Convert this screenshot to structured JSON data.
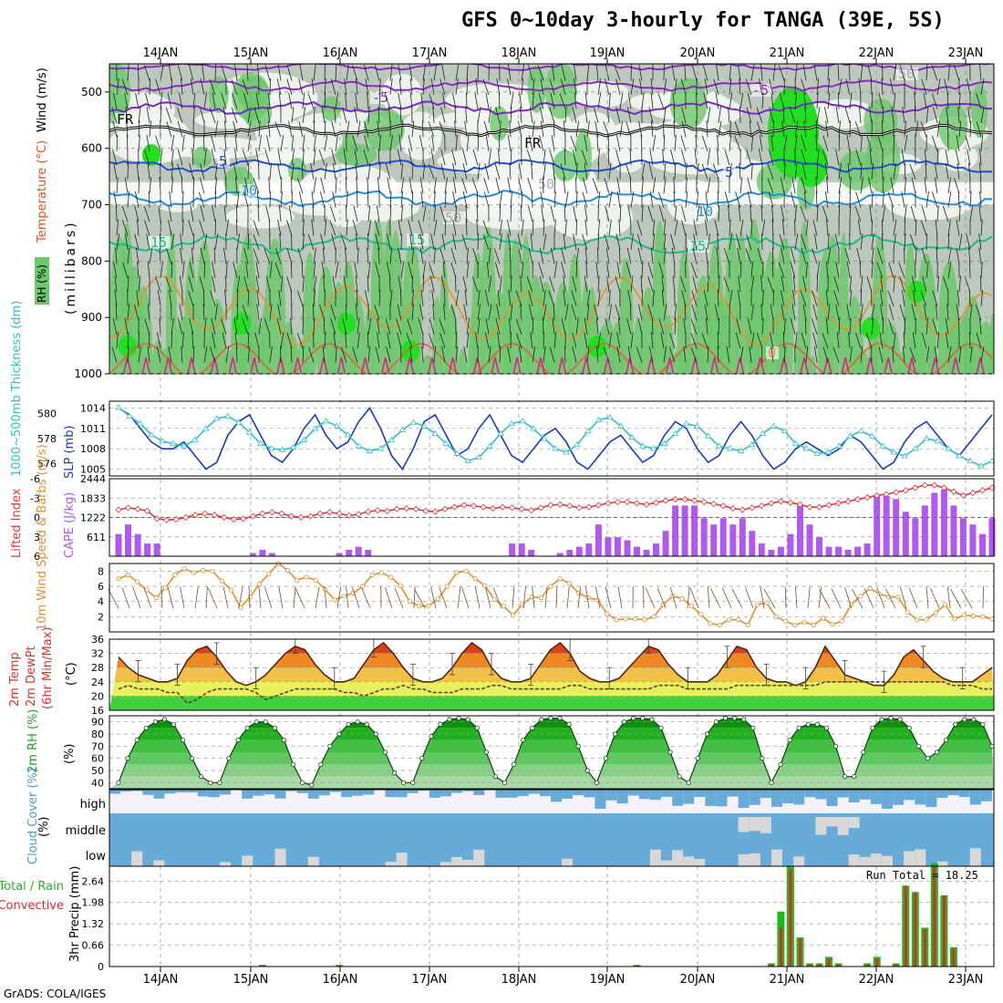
{
  "title": "GFS 0~10day 3-hourly for TANGA (39E, 5S)",
  "credit": "GrADS: COLA/IGES",
  "dates": [
    "14JAN",
    "15JAN",
    "16JAN",
    "17JAN",
    "18JAN",
    "19JAN",
    "20JAN",
    "21JAN",
    "22JAN",
    "23JAN"
  ],
  "colors": {
    "rh_light": "#e0ece0",
    "rh_gray": "#bcc8bc",
    "rh_mid": "#6cc86c",
    "rh_bright": "#20e020",
    "thickness": "#30c0c8",
    "slp": "#1838c8",
    "lifted": "#e03838",
    "cape": "#b058f0",
    "wind10": "#e09030",
    "temp": "#502818",
    "precip_total": "#20b820",
    "precip_conv": "#e02828",
    "cloud": "#68aad8",
    "cloud_gap": "#d8d8d8"
  },
  "chart_data": [
    {
      "type": "heatmap",
      "name": "upper",
      "ylabel_parts": [
        "RH (%)",
        "Temperature (°C)",
        "Wind (m/s)",
        "(millibars)"
      ],
      "yticks": [
        500,
        600,
        700,
        800,
        900,
        1000
      ],
      "ylim": [
        450,
        1000
      ],
      "contour_labels": [
        "-5",
        "-5",
        "FR",
        "FR",
        "5",
        "5",
        "10",
        "10",
        "15",
        "15",
        "15",
        "50",
        "50",
        "50",
        "0"
      ]
    },
    {
      "type": "line",
      "name": "thickness-slp",
      "ylabel_left": "1000~500mb Thickness (dm)",
      "ylabel_right": "SLP (mb)",
      "yticks_left": [
        576,
        578,
        580
      ],
      "yticks_right": [
        1005,
        1008,
        1011,
        1014
      ],
      "series": [
        {
          "name": "SLP",
          "values": [
            1014,
            1013,
            1011,
            1009,
            1008,
            1008,
            1009,
            1007,
            1005,
            1006,
            1010,
            1012,
            1013,
            1010,
            1007,
            1006,
            1008,
            1011,
            1013,
            1010,
            1008,
            1009,
            1012,
            1014,
            1011,
            1007,
            1005,
            1008,
            1012,
            1013,
            1010,
            1007,
            1008,
            1011,
            1013,
            1010,
            1007,
            1006,
            1008,
            1010,
            1011,
            1009,
            1006,
            1005,
            1007,
            1009,
            1010,
            1008,
            1006,
            1007,
            1010,
            1012,
            1011,
            1008,
            1006,
            1007,
            1010,
            1012,
            1010,
            1007,
            1005,
            1006,
            1008,
            1009,
            1008,
            1007,
            1008,
            1010,
            1009,
            1007,
            1005,
            1006,
            1009,
            1011,
            1012,
            1010,
            1008,
            1007,
            1009,
            1011,
            1013
          ]
        },
        {
          "name": "Thickness",
          "values": [
            580.5,
            579.8,
            579.2,
            578.3,
            577.8,
            577.6,
            577.4,
            577.9,
            578.8,
            579.6,
            579.8,
            579.3,
            578.5,
            577.6,
            577.2,
            577.1,
            577.3,
            577.9,
            578.8,
            579.4,
            579.0,
            578.3,
            577.4,
            577.0,
            577.2,
            577.9,
            578.7,
            579.3,
            579.0,
            578.4,
            577.6,
            576.8,
            576.2,
            576.5,
            577.4,
            578.4,
            579.2,
            579.4,
            578.8,
            578.0,
            577.2,
            576.9,
            577.5,
            578.6,
            579.5,
            579.7,
            579.0,
            578.1,
            577.4,
            577.2,
            577.6,
            578.4,
            579.2,
            579.0,
            578.2,
            577.4,
            577.2,
            577.0,
            577.5,
            578.4,
            579.0,
            578.6,
            577.6,
            577.2,
            576.8,
            576.9,
            577.4,
            578.2,
            578.6,
            578.2,
            577.4,
            576.9,
            576.6,
            577.2,
            578.0,
            577.8,
            577.2,
            576.6,
            576.2,
            575.8,
            576.2
          ]
        }
      ]
    },
    {
      "type": "bar",
      "name": "cape-lifted",
      "ylabel_left": "Lifted Index",
      "ylabel_right": "CAPE (J/kg)",
      "yticks_left": [
        6,
        3,
        0,
        -3,
        -6
      ],
      "yticks_right": [
        611,
        1222,
        1833,
        2444
      ],
      "series": [
        {
          "name": "CAPE",
          "values": [
            700,
            1000,
            700,
            400,
            400,
            0,
            0,
            0,
            0,
            0,
            0,
            0,
            0,
            0,
            100,
            200,
            100,
            0,
            0,
            0,
            0,
            0,
            0,
            100,
            200,
            300,
            200,
            0,
            0,
            0,
            0,
            0,
            0,
            0,
            0,
            0,
            0,
            0,
            0,
            0,
            0,
            400,
            400,
            200,
            0,
            0,
            100,
            200,
            300,
            400,
            1000,
            600,
            600,
            500,
            300,
            200,
            400,
            800,
            1600,
            1600,
            1600,
            1200,
            1000,
            1200,
            1000,
            1200,
            800,
            400,
            200,
            300,
            700,
            1600,
            1000,
            600,
            300,
            300,
            200,
            300,
            400,
            1900,
            1900,
            1800,
            1400,
            1200,
            1600,
            2000,
            2100,
            1600,
            1200,
            1000,
            700,
            1200
          ]
        },
        {
          "name": "Lifted Index",
          "values": [
            -1.2,
            -1.5,
            -1.3,
            -1.0,
            0.2,
            0.4,
            0.3,
            0.0,
            -0.4,
            -0.6,
            -0.4,
            0.0,
            0.3,
            0.2,
            -0.2,
            -0.6,
            -0.8,
            -0.6,
            -0.2,
            0.0,
            -0.2,
            -0.6,
            -0.8,
            -0.6,
            -0.3,
            -0.5,
            -0.9,
            -1.1,
            -1.0,
            -1.3,
            -1.4,
            -1.3,
            -1.0,
            -0.9,
            -1.3,
            -1.6,
            -1.9,
            -1.8,
            -1.6,
            -1.4,
            -1.6,
            -1.5,
            -1.3,
            -1.1,
            -1.5,
            -1.9,
            -2.0,
            -1.8,
            -1.5,
            -1.6,
            -1.9,
            -2.2,
            -2.4,
            -2.4,
            -2.2,
            -2.0,
            -2.3,
            -2.6,
            -2.8,
            -2.8,
            -2.6,
            -2.4,
            -2.1,
            -1.8,
            -1.4,
            -1.2,
            -1.5,
            -1.8,
            -2.2,
            -2.5,
            -2.3,
            -2.0,
            -1.6,
            -1.6,
            -1.9,
            -2.2,
            -2.5,
            -2.8,
            -3.1,
            -3.4,
            -3.6,
            -3.9,
            -4.2,
            -4.6,
            -5.0,
            -5.0,
            -4.6,
            -4.0,
            -3.4,
            -3.8,
            -4.2,
            -4.6
          ]
        }
      ]
    },
    {
      "type": "line",
      "name": "wind10m",
      "ylabel": "10m Wind Speed & Barbs (m/s)",
      "yticks": [
        2,
        4,
        6,
        8
      ],
      "ylim": [
        0,
        9
      ],
      "series": [
        {
          "name": "Speed",
          "values": [
            7.0,
            7.5,
            6.6,
            5.5,
            4.5,
            5.8,
            7.5,
            8.3,
            7.8,
            8.1,
            8.0,
            6.7,
            5.5,
            3.2,
            4.6,
            6.3,
            7.6,
            9.0,
            8.1,
            6.8,
            7.2,
            6.8,
            5.6,
            4.2,
            4.7,
            5.1,
            6.0,
            7.5,
            7.8,
            7.2,
            6.1,
            4.0,
            3.4,
            3.4,
            4.3,
            6.0,
            7.8,
            8.0,
            7.0,
            6.1,
            4.3,
            3.4,
            2.2,
            3.6,
            4.6,
            4.5,
            6.0,
            7.0,
            6.4,
            5.1,
            4.5,
            4.2,
            2.4,
            1.6,
            1.7,
            1.7,
            1.6,
            2.0,
            3.6,
            4.7,
            4.4,
            3.4,
            2.3,
            1.1,
            0.9,
            1.6,
            1.6,
            0.9,
            3.6,
            3.8,
            2.0,
            1.4,
            0.9,
            1.3,
            0.9,
            1.8,
            1.0,
            1.4,
            3.6,
            4.7,
            5.7,
            5.0,
            4.6,
            4.6,
            2.6,
            1.6,
            1.6,
            2.5,
            3.6,
            1.7,
            2.2,
            2.1,
            2.0,
            1.7
          ]
        }
      ]
    },
    {
      "type": "area",
      "name": "temp2m",
      "ylabel": "2m Temp 2m DewPt (6hr Min/Max) (°C)",
      "yticks": [
        16,
        20,
        24,
        28,
        32,
        36
      ],
      "ylim": [
        16,
        36
      ],
      "series": [
        {
          "name": "Temp",
          "values": [
            31,
            28,
            26,
            25,
            24,
            24,
            25,
            30,
            33,
            34,
            31,
            27,
            24,
            23,
            24,
            26,
            29,
            32,
            34,
            33,
            29,
            26,
            24,
            24,
            25,
            29,
            33,
            35,
            32,
            28,
            25,
            24,
            24,
            25,
            28,
            32,
            35,
            33,
            28,
            25,
            24,
            24,
            25,
            29,
            33,
            35,
            32,
            27,
            25,
            24,
            24,
            25,
            28,
            31,
            34,
            33,
            29,
            26,
            24,
            24,
            24,
            26,
            30,
            34,
            33,
            28,
            25,
            24,
            24,
            23,
            24,
            28,
            34,
            30,
            26,
            25,
            24,
            23,
            23,
            26,
            31,
            33,
            30,
            27,
            25,
            24,
            24,
            24,
            26,
            28
          ]
        },
        {
          "name": "DewPt",
          "values": [
            22,
            23,
            22,
            22,
            22,
            21,
            21,
            18,
            19,
            21,
            22,
            22,
            22,
            22,
            21,
            19,
            20,
            21,
            22,
            22,
            22,
            22,
            22,
            21,
            21,
            20,
            21,
            22,
            22,
            23,
            22,
            22,
            21,
            21,
            21,
            22,
            22,
            22,
            23,
            23,
            22,
            22,
            22,
            22,
            22,
            22,
            23,
            23,
            22,
            22,
            22,
            22,
            22,
            22,
            22,
            23,
            23,
            23,
            22,
            22,
            22,
            22,
            22,
            23,
            23,
            23,
            23,
            23,
            23,
            23,
            23,
            23,
            24,
            24,
            24,
            24,
            24,
            24,
            24,
            24,
            24,
            24,
            24,
            24,
            24,
            23,
            23,
            23,
            22,
            22
          ]
        }
      ]
    },
    {
      "type": "area",
      "name": "rh2m",
      "ylabel": "2m RH (%)",
      "yticks": [
        40,
        50,
        60,
        70,
        80,
        90
      ],
      "ylim": [
        35,
        95
      ],
      "series": [
        {
          "name": "RH",
          "values": [
            40,
            60,
            75,
            85,
            90,
            92,
            88,
            75,
            60,
            45,
            40,
            40,
            60,
            75,
            85,
            90,
            90,
            85,
            75,
            55,
            40,
            38,
            55,
            70,
            80,
            88,
            90,
            88,
            80,
            65,
            48,
            40,
            40,
            60,
            78,
            88,
            92,
            93,
            92,
            85,
            65,
            45,
            40,
            55,
            75,
            85,
            92,
            93,
            93,
            88,
            70,
            50,
            40,
            60,
            80,
            90,
            93,
            93,
            92,
            85,
            65,
            45,
            40,
            60,
            80,
            90,
            93,
            93,
            92,
            85,
            60,
            40,
            55,
            75,
            85,
            88,
            88,
            85,
            70,
            45,
            45,
            65,
            85,
            92,
            93,
            92,
            85,
            70,
            60,
            65,
            75,
            88,
            92,
            92,
            88,
            70
          ]
        }
      ]
    },
    {
      "type": "bar",
      "name": "cloud",
      "ylabel": "Cloud Cover (%)",
      "levels": [
        "high",
        "middle",
        "low"
      ]
    },
    {
      "type": "bar",
      "name": "precip",
      "ylabel_parts": [
        "Total / Rain",
        "Convective",
        "3hr Precip (mm)"
      ],
      "yticks": [
        0,
        0.66,
        1.32,
        1.98,
        2.64
      ],
      "ylim": [
        0,
        3.1
      ],
      "run_total": "Run Total = 18.25",
      "series": [
        {
          "name": "Total",
          "values": [
            0,
            0,
            0,
            0,
            0,
            0,
            0,
            0,
            0,
            0,
            0,
            0,
            0,
            0,
            0,
            0.05,
            0,
            0,
            0,
            0,
            0,
            0,
            0,
            0.05,
            0,
            0,
            0,
            0,
            0,
            0,
            0,
            0,
            0,
            0,
            0,
            0,
            0,
            0,
            0,
            0,
            0,
            0,
            0,
            0,
            0,
            0,
            0,
            0,
            0,
            0,
            0,
            0,
            0,
            0,
            0.05,
            0,
            0,
            0,
            0,
            0,
            0,
            0,
            0,
            0,
            0,
            0,
            0,
            0,
            0.1,
            1.7,
            3.1,
            0.9,
            0.1,
            0.1,
            0.3,
            0.1,
            0,
            0,
            0.1,
            0.3,
            0,
            0.1,
            2.5,
            2.3,
            1.2,
            3.2,
            2.2,
            0.6,
            0,
            0,
            0,
            0
          ]
        },
        {
          "name": "Convective",
          "values": [
            0,
            0,
            0,
            0,
            0,
            0,
            0,
            0,
            0,
            0,
            0,
            0,
            0,
            0,
            0,
            0.04,
            0,
            0,
            0,
            0,
            0,
            0,
            0,
            0.04,
            0,
            0,
            0,
            0,
            0,
            0,
            0,
            0,
            0,
            0,
            0,
            0,
            0,
            0,
            0,
            0,
            0,
            0,
            0,
            0,
            0,
            0,
            0,
            0,
            0,
            0,
            0,
            0,
            0,
            0,
            0.04,
            0,
            0,
            0,
            0,
            0,
            0,
            0,
            0,
            0,
            0,
            0,
            0,
            0,
            0.08,
            1.2,
            3.0,
            0.85,
            0.08,
            0.08,
            0.25,
            0.08,
            0,
            0,
            0.08,
            0.25,
            0,
            0.08,
            2.5,
            2.3,
            1.15,
            3.1,
            2.2,
            0.55,
            0,
            0,
            0,
            0
          ]
        }
      ]
    }
  ]
}
